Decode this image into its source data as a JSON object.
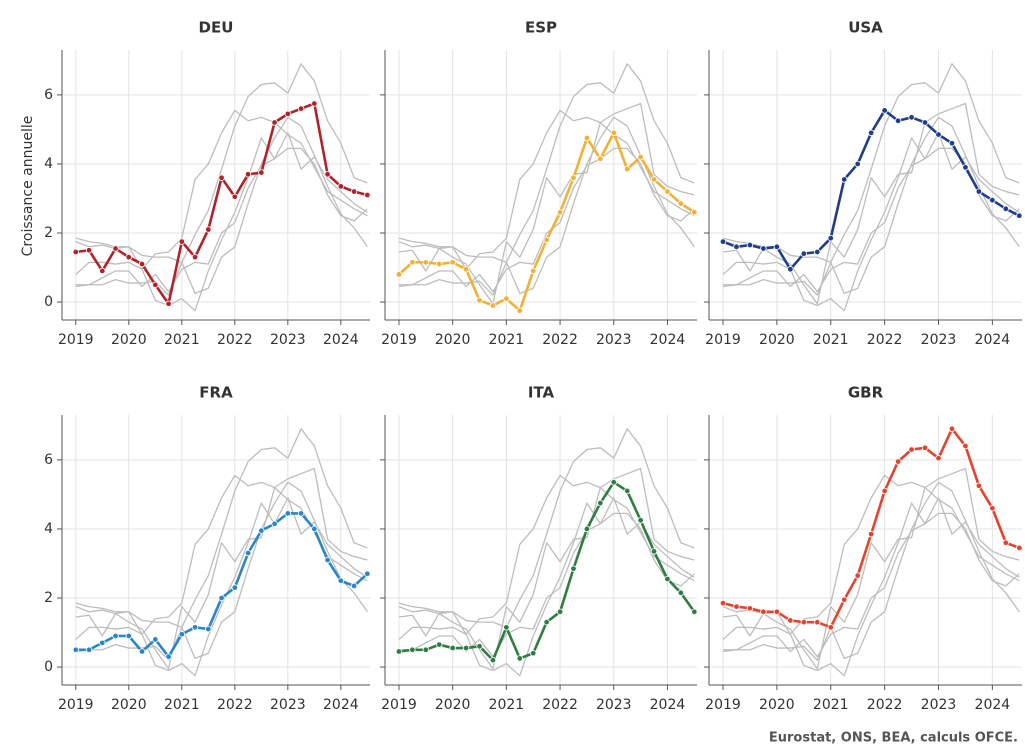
{
  "chart_data": {
    "type": "line",
    "ylabel": "Croissance annuelle",
    "source": "Eurostat, ONS, BEA, calculs OFCE.",
    "x": [
      2019,
      2019.25,
      2019.5,
      2019.75,
      2020,
      2020.25,
      2020.5,
      2020.75,
      2021,
      2021.25,
      2021.5,
      2021.75,
      2022,
      2022.25,
      2022.5,
      2022.75,
      2023,
      2023.25,
      2023.5,
      2023.75,
      2024,
      2024.25,
      2024.5
    ],
    "xlim": [
      2018.74,
      2024.55
    ],
    "xticks": [
      2019,
      2020,
      2021,
      2022,
      2023,
      2024
    ],
    "ylim": [
      -0.52,
      7.3
    ],
    "yticks": [
      0,
      2,
      4,
      6
    ],
    "grid": true,
    "context_color": "#bdbdbd",
    "series": [
      {
        "name": "DEU",
        "color": "#b0232a",
        "values": [
          1.45,
          1.5,
          0.9,
          1.55,
          1.3,
          1.1,
          0.5,
          -0.05,
          1.75,
          1.3,
          2.1,
          3.6,
          3.05,
          3.7,
          3.75,
          5.2,
          5.45,
          5.6,
          5.75,
          3.7,
          3.35,
          3.2,
          3.1
        ]
      },
      {
        "name": "ESP",
        "color": "#f2b134",
        "values": [
          0.8,
          1.15,
          1.15,
          1.1,
          1.15,
          0.95,
          0.05,
          -0.1,
          0.1,
          -0.25,
          0.9,
          1.8,
          2.6,
          3.6,
          4.75,
          4.15,
          4.9,
          3.85,
          4.2,
          3.55,
          3.2,
          2.85,
          2.6
        ]
      },
      {
        "name": "USA",
        "color": "#1f3d8c",
        "values": [
          1.75,
          1.6,
          1.65,
          1.55,
          1.6,
          0.95,
          1.4,
          1.45,
          1.85,
          3.55,
          4.0,
          4.9,
          5.55,
          5.25,
          5.35,
          5.2,
          4.85,
          4.6,
          3.9,
          3.2,
          2.95,
          2.7,
          2.5
        ]
      },
      {
        "name": "FRA",
        "color": "#2b86c5",
        "values": [
          0.5,
          0.5,
          0.7,
          0.9,
          0.9,
          0.45,
          0.8,
          0.3,
          0.95,
          1.15,
          1.1,
          2.0,
          2.3,
          3.3,
          3.95,
          4.15,
          4.45,
          4.45,
          4.0,
          3.1,
          2.5,
          2.35,
          2.7
        ]
      },
      {
        "name": "ITA",
        "color": "#2e7d43",
        "values": [
          0.45,
          0.5,
          0.5,
          0.65,
          0.55,
          0.55,
          0.6,
          0.2,
          1.15,
          0.25,
          0.4,
          1.3,
          1.6,
          2.85,
          4.0,
          4.75,
          5.35,
          5.1,
          4.25,
          3.35,
          2.55,
          2.15,
          1.6
        ]
      },
      {
        "name": "GBR",
        "color": "#e5432d",
        "values": [
          1.85,
          1.75,
          1.7,
          1.6,
          1.6,
          1.35,
          1.3,
          1.3,
          1.15,
          1.95,
          2.65,
          3.85,
          5.1,
          5.95,
          6.3,
          6.35,
          6.05,
          6.9,
          6.4,
          5.25,
          4.6,
          3.6,
          3.45
        ]
      }
    ]
  }
}
